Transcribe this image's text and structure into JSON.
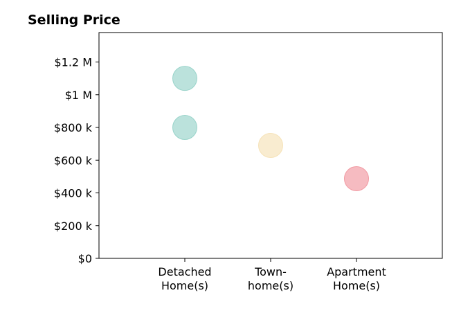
{
  "chart_data": {
    "type": "scatter",
    "title": "Selling Price",
    "xlabel": "",
    "ylabel": "",
    "categories": [
      "Detached Home(s)",
      "Town-home(s)",
      "Apartment Home(s)"
    ],
    "category_tick_lines": [
      [
        "Detached",
        "Home(s)"
      ],
      [
        "Town-",
        "home(s)"
      ],
      [
        "Apartment",
        "Home(s)"
      ]
    ],
    "x_range": [
      -1,
      3
    ],
    "ylim": [
      0,
      1380000
    ],
    "y_ticks": [
      {
        "value": 0,
        "label": "$0"
      },
      {
        "value": 200000,
        "label": "$200 k"
      },
      {
        "value": 400000,
        "label": "$400 k"
      },
      {
        "value": 600000,
        "label": "$600 k"
      },
      {
        "value": 800000,
        "label": "$800 k"
      },
      {
        "value": 1000000,
        "label": "$1 M"
      },
      {
        "value": 1200000,
        "label": "$1.2 M"
      }
    ],
    "grid": false,
    "legend": "none",
    "points": [
      {
        "category": "Detached Home(s)",
        "value": 1100000,
        "color": "#8ecfc4"
      },
      {
        "category": "Detached Home(s)",
        "value": 800000,
        "color": "#8ecfc4"
      },
      {
        "category": "Town-home(s)",
        "value": 690000,
        "color": "#f5dfb0"
      },
      {
        "category": "Apartment Home(s)",
        "value": 487000,
        "color": "#f08e98"
      }
    ]
  }
}
